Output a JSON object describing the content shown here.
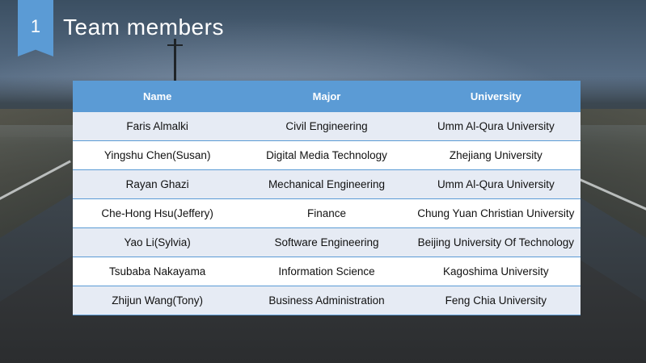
{
  "slide": {
    "number": "1",
    "title": "Team members"
  },
  "colors": {
    "accent": "#5b9bd5",
    "row_alt": "#e6ebf4",
    "row": "#ffffff"
  },
  "table": {
    "headers": [
      "Name",
      "Major",
      "University"
    ],
    "rows": [
      [
        "Faris Almalki",
        "Civil Engineering",
        "Umm Al-Qura University"
      ],
      [
        "Yingshu Chen(Susan)",
        "Digital Media Technology",
        "Zhejiang University"
      ],
      [
        "Rayan Ghazi",
        "Mechanical Engineering",
        "Umm Al-Qura University"
      ],
      [
        "Che-Hong Hsu(Jeffery)",
        "Finance",
        "Chung Yuan Christian University"
      ],
      [
        "Yao Li(Sylvia)",
        "Software Engineering",
        "Beijing University Of Technology"
      ],
      [
        "Tsubaba Nakayama",
        "Information Science",
        "Kagoshima University"
      ],
      [
        "Zhijun Wang(Tony)",
        "Business Administration",
        "Feng Chia University"
      ]
    ]
  }
}
